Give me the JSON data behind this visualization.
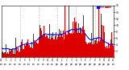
{
  "n_points": 1440,
  "background_color": "#ffffff",
  "bar_color": "#dd0000",
  "median_color": "#0000ee",
  "ylim": [
    0,
    16
  ],
  "ytick_vals": [
    2,
    4,
    6,
    8,
    10,
    12,
    14,
    16
  ],
  "legend_actual_color": "#dd0000",
  "legend_median_color": "#0000ee",
  "grid_color": "#999999",
  "figsize": [
    1.6,
    0.87
  ],
  "dpi": 100
}
